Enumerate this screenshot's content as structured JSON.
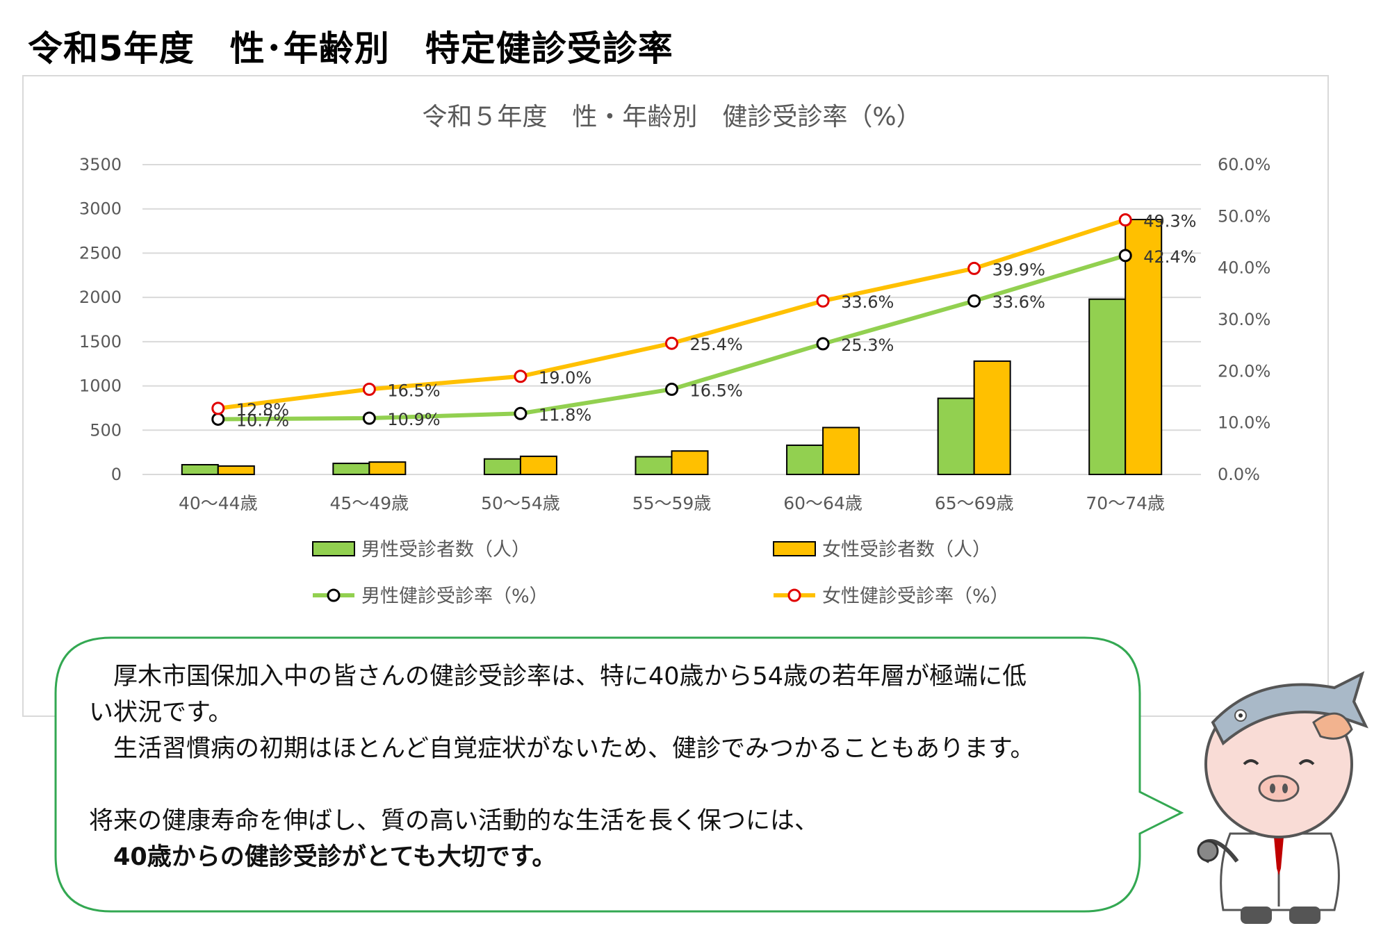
{
  "page_title": "令和5年度　性･年齢別　特定健診受診率",
  "chart_data": {
    "type": "bar+line",
    "title": "令和５年度　性・年齢別　健診受診率（%）",
    "categories": [
      "40～44歳",
      "45～49歳",
      "50～54歳",
      "55～59歳",
      "60～64歳",
      "65～69歳",
      "70～74歳"
    ],
    "left_axis": {
      "min": 0,
      "max": 3500,
      "ticks": [
        "0",
        "500",
        "1000",
        "1500",
        "2000",
        "2500",
        "3000",
        "3500"
      ]
    },
    "right_axis": {
      "min": 0,
      "max": 60,
      "ticks": [
        "0.0%",
        "10.0%",
        "20.0%",
        "30.0%",
        "40.0%",
        "50.0%",
        "60.0%"
      ]
    },
    "grid": true,
    "legend_position": "bottom",
    "bar_series": [
      {
        "name": "男性受診者数（人）",
        "color": "#92d050",
        "values": [
          110,
          125,
          175,
          200,
          330,
          860,
          1980
        ]
      },
      {
        "name": "女性受診者数（人）",
        "color": "#ffc000",
        "values": [
          95,
          140,
          205,
          265,
          530,
          1280,
          2880
        ]
      }
    ],
    "line_series": [
      {
        "name": "男性健診受診率（%）",
        "color": "#92d050",
        "marker_color": "#000000",
        "values": [
          10.7,
          10.9,
          11.8,
          16.5,
          25.3,
          33.6,
          42.4
        ],
        "labels": [
          "10.7%",
          "10.9%",
          "11.8%",
          "16.5%",
          "25.3%",
          "33.6%",
          "42.4%"
        ]
      },
      {
        "name": "女性健診受診率（%）",
        "color": "#ffc000",
        "marker_color": "#e00000",
        "values": [
          12.8,
          16.5,
          19.0,
          25.4,
          33.6,
          39.9,
          49.3
        ],
        "labels": [
          "12.8%",
          "16.5%",
          "19.0%",
          "25.4%",
          "33.6%",
          "39.9%",
          "49.3%"
        ]
      }
    ]
  },
  "message": {
    "line1": "　厚木市国保加入中の皆さんの健診受診率は、特に40歳から54歳の若年層が極端に低",
    "line2": "い状況です。",
    "line3": "　生活習慣病の初期はほとんど自覚症状がないため、健診でみつかることもあります。",
    "line4": "",
    "line5": "将来の健康寿命を伸ばし、質の高い活動的な生活を長く保つには、",
    "line6": "　40歳からの健診受診がとても大切です。"
  },
  "colors": {
    "bubble_border": "#33a852",
    "grid": "#d9d9d9",
    "axis_text": "#595959"
  }
}
